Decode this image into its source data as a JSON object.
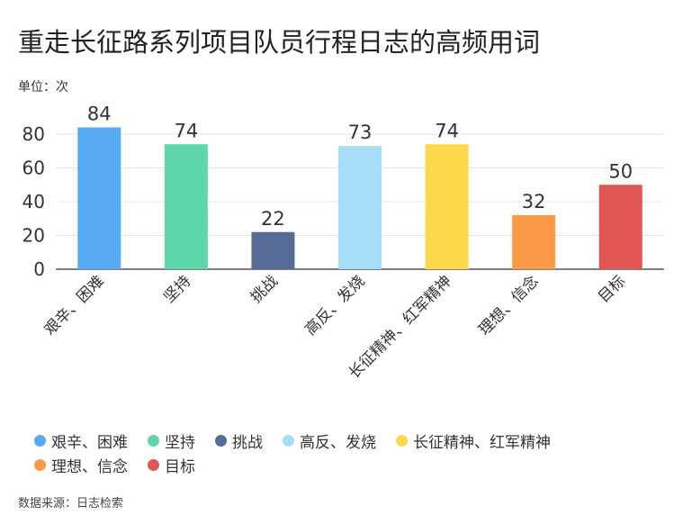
{
  "chart_data": {
    "type": "bar",
    "title": "重走长征路系列项目队员行程日志的高频用词",
    "unit_label": "单位：次",
    "categories": [
      "艰辛、困难",
      "坚持",
      "挑战",
      "高反、发烧",
      "长征精神、红军精神",
      "理想、信念",
      "目标"
    ],
    "values": [
      84,
      74,
      22,
      73,
      74,
      32,
      50
    ],
    "colors": [
      "#57abf5",
      "#5dd6a8",
      "#566b96",
      "#a6ddf8",
      "#fcd84a",
      "#fd9a48",
      "#e05652"
    ],
    "ylim": [
      0,
      90
    ],
    "yticks": [
      0,
      20,
      40,
      60,
      80
    ],
    "grid": true,
    "legend_placement": "bottom",
    "source": "数据来源：日志检索"
  }
}
